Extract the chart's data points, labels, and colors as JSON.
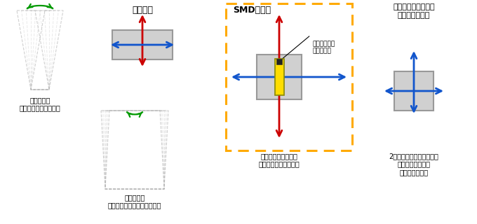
{
  "bg_color": "#ffffff",
  "text_color": "#000000",
  "arrow_red": "#cc0000",
  "arrow_blue": "#1155cc",
  "arrow_green": "#009900",
  "box_gray_edge": "#999999",
  "box_fill": "#d0d0d0",
  "dashed_color": "#aaaaaa",
  "yellow_dashed": "#ffaa00",
  "screw_yellow": "#ffdd00",
  "screw_outline": "#888800",
  "screw_black": "#222222",
  "title1": "建物周期",
  "title2": "SMDの周期",
  "title3": "一般的な屋上設置型\n制振装置の周期",
  "label_short": "短辺方向：\nゆっくり大きく揺れる",
  "label_long": "長辺方向：\n短い時間間隔で小さく揺れる",
  "label_smd": "短辺・長辺どちらの\n方向にも同調している",
  "label_general": "2方向の周期が同じため、\nどちらかの方向は\n同調していない",
  "label_dynamic": "ダイナミック\nスクリュー"
}
